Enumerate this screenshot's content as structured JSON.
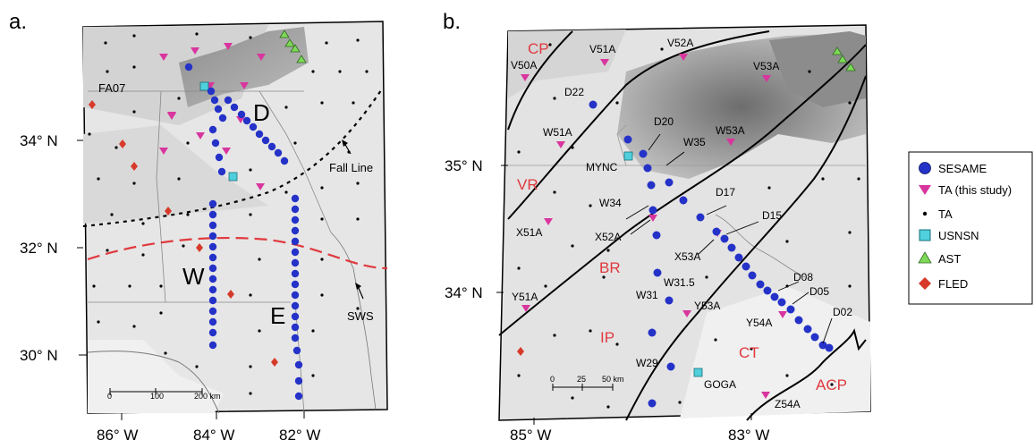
{
  "panel_a": {
    "label": "a.",
    "lat_ticks": [
      "34° N",
      "32° N",
      "30° N"
    ],
    "lon_ticks": [
      "86° W",
      "84° W",
      "82° W"
    ],
    "profile_labels": {
      "D": "D",
      "W": "W",
      "E": "E"
    },
    "station_fa07": "FA07",
    "fall_line": "Fall Line",
    "sws": "SWS",
    "scale": [
      "0",
      "100",
      "200 km"
    ]
  },
  "panel_b": {
    "label": "b.",
    "lat_ticks": [
      "35° N",
      "34° N"
    ],
    "lon_ticks": [
      "85° W",
      "83° W"
    ],
    "regions": [
      "CP",
      "VR",
      "BR",
      "IP",
      "CT",
      "ACP"
    ],
    "stations": [
      "V50A",
      "V51A",
      "V52A",
      "V53A",
      "D22",
      "D20",
      "W51A",
      "W53A",
      "MYNC",
      "W35",
      "W34",
      "D17",
      "D15",
      "X51A",
      "X52A",
      "X53A",
      "W31.5",
      "W31",
      "Y53A",
      "D08",
      "D05",
      "D02",
      "Y54A",
      "Y51A",
      "W29",
      "GOGA",
      "Z54A"
    ],
    "scale": [
      "0",
      "25",
      "50 km"
    ]
  },
  "legend": {
    "items": [
      {
        "label": "SESAME",
        "symbol": "circle",
        "color": "#2432c8"
      },
      {
        "label": "TA (this study)",
        "symbol": "inverted-triangle",
        "color": "#d9359e"
      },
      {
        "label": "TA",
        "symbol": "dot",
        "color": "#000000"
      },
      {
        "label": "USNSN",
        "symbol": "square",
        "color": "#4fd0dc"
      },
      {
        "label": "AST",
        "symbol": "triangle",
        "color": "#7ed957"
      },
      {
        "label": "FLED",
        "symbol": "diamond",
        "color": "#d73a2a"
      }
    ]
  },
  "colors": {
    "sesame": "#2432c8",
    "ta_study": "#d9359e",
    "usnsn": "#4fd0dc",
    "ast": "#7ed957",
    "fled": "#d73a2a",
    "region_text": "#e0393e",
    "sws_line": "#e0393e"
  }
}
